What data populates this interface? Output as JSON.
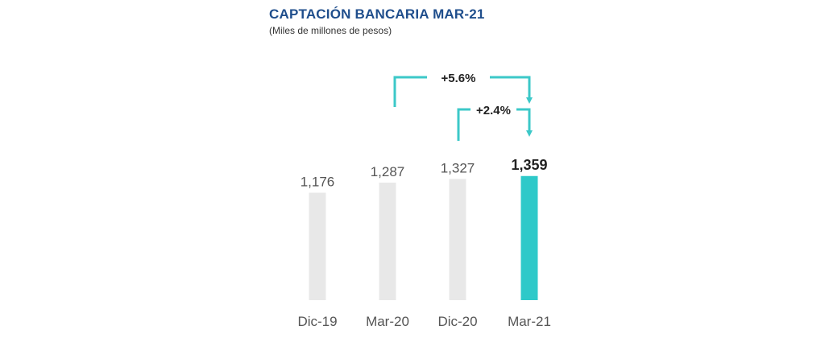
{
  "title": "CAPTACIÓN BANCARIA MAR-21",
  "subtitle": "(Miles de millones de pesos)",
  "colors": {
    "bar_default": "#e8e8e8",
    "bar_highlight": "#2ec9c9",
    "arrow": "#3cc8c8",
    "label": "#555555",
    "label_highlight": "#222222",
    "title": "#1f4e8c"
  },
  "chart_data": {
    "type": "bar",
    "categories": [
      "Dic-19",
      "Mar-20",
      "Dic-20",
      "Mar-21"
    ],
    "values": [
      1176,
      1287,
      1327,
      1359
    ],
    "value_labels": [
      "1,176",
      "1,287",
      "1,327",
      "1,359"
    ],
    "highlight_index": 3,
    "title": "CAPTACIÓN BANCARIA MAR-21",
    "subtitle": "(Miles de millones de pesos)",
    "xlabel": "",
    "ylabel": "",
    "grid": false,
    "annotations": [
      {
        "text": "+5.6%",
        "from": "Mar-20",
        "to": "Mar-21"
      },
      {
        "text": "+2.4%",
        "from": "Dic-20",
        "to": "Mar-21"
      }
    ]
  }
}
